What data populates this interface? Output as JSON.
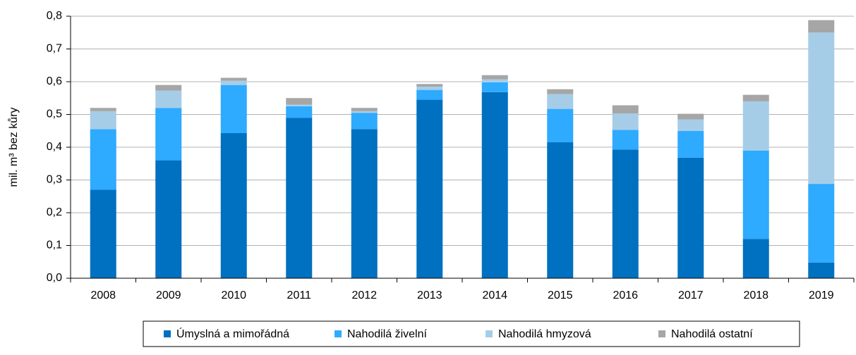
{
  "chart_data": {
    "type": "stacked_bar",
    "y_label": "mil. m³ bez kůry",
    "categories": [
      "2008",
      "2009",
      "2010",
      "2011",
      "2012",
      "2013",
      "2014",
      "2015",
      "2016",
      "2017",
      "2018",
      "2019"
    ],
    "series": [
      {
        "name": "Úmyslná a mimořádná",
        "color": "#0070c0",
        "values": [
          0.27,
          0.36,
          0.443,
          0.49,
          0.455,
          0.545,
          0.568,
          0.415,
          0.393,
          0.368,
          0.12,
          0.048
        ]
      },
      {
        "name": "Nahodilá živelní",
        "color": "#2eaaff",
        "values": [
          0.185,
          0.16,
          0.147,
          0.035,
          0.05,
          0.03,
          0.03,
          0.102,
          0.06,
          0.082,
          0.27,
          0.24
        ]
      },
      {
        "name": "Nahodilá hmyzová",
        "color": "#a6cde8",
        "values": [
          0.055,
          0.053,
          0.013,
          0.005,
          0.005,
          0.01,
          0.009,
          0.045,
          0.05,
          0.035,
          0.15,
          0.462
        ]
      },
      {
        "name": "Nahodilá ostatní",
        "color": "#a6a6a6",
        "values": [
          0.01,
          0.017,
          0.009,
          0.02,
          0.01,
          0.008,
          0.013,
          0.015,
          0.025,
          0.017,
          0.02,
          0.038
        ]
      }
    ],
    "ylim": [
      0,
      0.8
    ],
    "yticks": [
      {
        "value": 0,
        "label": "0,0"
      },
      {
        "value": 0.1,
        "label": "0,1"
      },
      {
        "value": 0.2,
        "label": "0,2"
      },
      {
        "value": 0.3,
        "label": "0,3"
      },
      {
        "value": 0.4,
        "label": "0,4"
      },
      {
        "value": 0.5,
        "label": "0,5"
      },
      {
        "value": 0.6,
        "label": "0,6"
      },
      {
        "value": 0.7,
        "label": "0,7"
      },
      {
        "value": 0.8,
        "label": "0,8"
      }
    ],
    "grid": true,
    "legend": "bottom"
  }
}
